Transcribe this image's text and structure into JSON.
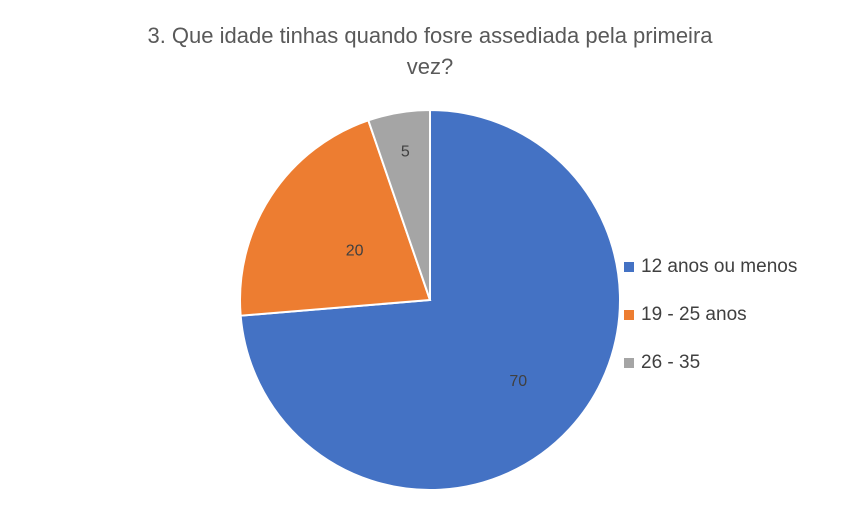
{
  "chart_data": {
    "type": "pie",
    "title_lines": [
      "3. Que idade tinhas quando fosre assediada pela primeira",
      "vez?"
    ],
    "categories": [
      "12 anos ou menos",
      "19 - 25 anos",
      "26 - 35"
    ],
    "values": [
      70,
      20,
      5
    ],
    "data_labels": [
      "70",
      "20",
      "5"
    ],
    "colors": [
      "#4472C4",
      "#ED7D31",
      "#A5A5A5"
    ],
    "start_angle_deg": 0,
    "direction": "clockwise",
    "legend_position": "right"
  }
}
